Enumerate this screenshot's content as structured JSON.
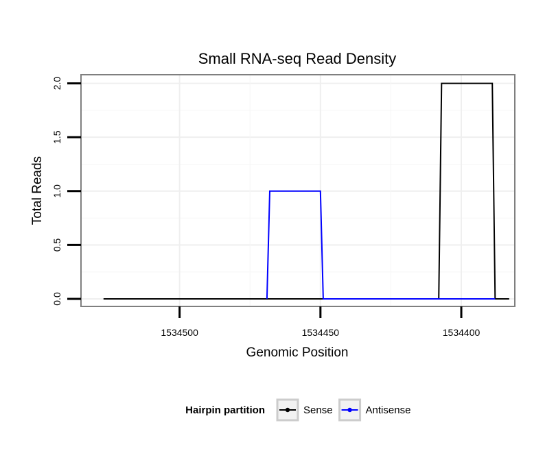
{
  "chart_data": {
    "type": "line",
    "title": "Small RNA-seq Read Density",
    "xlabel": "Genomic Position",
    "ylabel": "Total Reads",
    "x_reversed": true,
    "xlim": [
      1534535,
      1534381
    ],
    "ylim": [
      -0.07,
      2.08
    ],
    "x_ticks": [
      1534500,
      1534450,
      1534400
    ],
    "x_tick_labels": [
      "1534500",
      "1534450",
      "1534400"
    ],
    "y_ticks": [
      0,
      0.5,
      1,
      1.5,
      2
    ],
    "y_tick_labels": [
      "0.0",
      "0.5",
      "1.0",
      "1.5",
      "2.0"
    ],
    "grid": true,
    "legend_title": "Hairpin partition",
    "legend_position": "bottom",
    "series": [
      {
        "name": "Sense",
        "color": "#000000",
        "x": [
          1534527,
          1534408,
          1534407,
          1534389,
          1534388,
          1534383
        ],
        "y": [
          0,
          0,
          2,
          2,
          0,
          0
        ]
      },
      {
        "name": "Antisense",
        "color": "#0000ff",
        "x": [
          1534469,
          1534468,
          1534450,
          1534449,
          1534388
        ],
        "y": [
          0,
          1,
          1,
          0,
          0
        ]
      }
    ]
  }
}
